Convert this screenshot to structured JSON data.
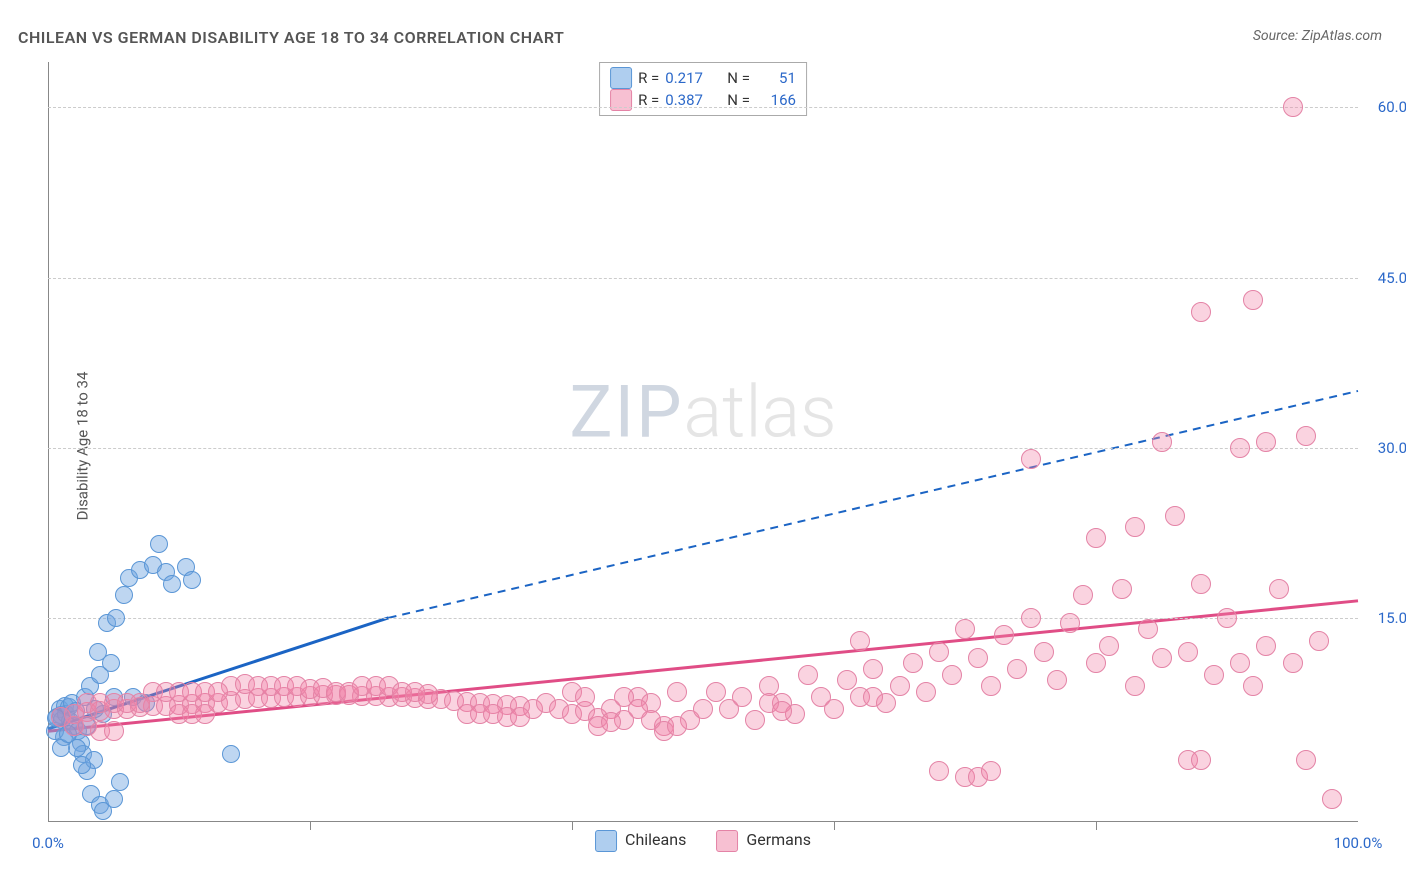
{
  "title": "CHILEAN VS GERMAN DISABILITY AGE 18 TO 34 CORRELATION CHART",
  "source": "Source: ZipAtlas.com",
  "ylabel": "Disability Age 18 to 34",
  "watermark": {
    "left": "ZIP",
    "right": "atlas"
  },
  "colors": {
    "blue_fill": "rgba(110,165,225,0.45)",
    "blue_stroke": "#5a96d6",
    "pink_fill": "rgba(240,130,165,0.35)",
    "pink_stroke": "#e483a6",
    "blue_line": "#1b64c4",
    "pink_line": "#e04d86",
    "tick_label": "#2b68c9",
    "grid": "#cccccc",
    "axis": "#888888"
  },
  "axes": {
    "x": {
      "min": 0,
      "max": 100,
      "label_min": "0.0%",
      "label_max": "100.0%",
      "ticks_at": [
        20,
        40,
        60,
        80
      ]
    },
    "y": {
      "min": -3,
      "max": 64,
      "grid": [
        {
          "v": 15,
          "label": "15.0%"
        },
        {
          "v": 30,
          "label": "30.0%"
        },
        {
          "v": 45,
          "label": "45.0%"
        },
        {
          "v": 60,
          "label": "60.0%"
        }
      ]
    }
  },
  "series": [
    {
      "id": "chileans",
      "name": "Chileans",
      "swatch_fill": "rgba(110,165,225,0.55)",
      "swatch_stroke": "#5a96d6",
      "r_label": "R =",
      "r_value": "0.217",
      "n_label": "N =",
      "n_value": "51",
      "marker_r": 9,
      "trend": {
        "x1": 0,
        "y1": 5.2,
        "x2_solid": 26,
        "y2_solid": 15.0,
        "x2_dash": 100,
        "y2_dash": 35.0
      },
      "points": [
        [
          0.7,
          6.3
        ],
        [
          0.9,
          7.0
        ],
        [
          1.0,
          6.4
        ],
        [
          1.1,
          6.0
        ],
        [
          1.3,
          7.2
        ],
        [
          1.4,
          6.5
        ],
        [
          1.6,
          7.1
        ],
        [
          1.7,
          5.9
        ],
        [
          1.8,
          7.5
        ],
        [
          2.0,
          5.5
        ],
        [
          2.1,
          6.8
        ],
        [
          2.3,
          5.0
        ],
        [
          2.5,
          4.0
        ],
        [
          2.7,
          3.0
        ],
        [
          3.0,
          1.5
        ],
        [
          3.3,
          -0.5
        ],
        [
          4.0,
          -1.5
        ],
        [
          4.2,
          -2.0
        ],
        [
          5.0,
          -1.0
        ],
        [
          5.5,
          0.5
        ],
        [
          3.5,
          2.5
        ],
        [
          2.8,
          8.0
        ],
        [
          3.2,
          9.0
        ],
        [
          3.8,
          12.0
        ],
        [
          4.5,
          14.5
        ],
        [
          5.2,
          15.0
        ],
        [
          5.8,
          17.0
        ],
        [
          6.2,
          18.5
        ],
        [
          7.0,
          19.2
        ],
        [
          8.0,
          19.7
        ],
        [
          8.5,
          21.5
        ],
        [
          9.0,
          19.0
        ],
        [
          9.5,
          18.0
        ],
        [
          10.5,
          19.5
        ],
        [
          11.0,
          18.3
        ],
        [
          5.0,
          8.0
        ],
        [
          6.5,
          8.0
        ],
        [
          7.5,
          7.5
        ],
        [
          2.2,
          3.5
        ],
        [
          2.6,
          2.0
        ],
        [
          3.0,
          5.5
        ],
        [
          1.2,
          4.5
        ],
        [
          0.5,
          5.0
        ],
        [
          0.6,
          6.2
        ],
        [
          1.0,
          3.5
        ],
        [
          1.5,
          4.8
        ],
        [
          14.0,
          3.0
        ],
        [
          4.0,
          10.0
        ],
        [
          4.8,
          11.0
        ],
        [
          4.2,
          6.5
        ],
        [
          3.6,
          7.0
        ]
      ]
    },
    {
      "id": "germans",
      "name": "Germans",
      "swatch_fill": "rgba(240,130,165,0.5)",
      "swatch_stroke": "#e483a6",
      "r_label": "R =",
      "r_value": "0.387",
      "n_label": "N =",
      "n_value": "166",
      "marker_r": 10,
      "trend": {
        "x1": 0,
        "y1": 5.0,
        "x2_solid": 100,
        "y2_solid": 16.5,
        "x2_dash": 100,
        "y2_dash": 16.5
      },
      "points": [
        [
          1,
          6.3
        ],
        [
          2,
          6.5
        ],
        [
          3,
          6.7
        ],
        [
          4,
          6.8
        ],
        [
          5,
          7.0
        ],
        [
          6,
          7.0
        ],
        [
          7,
          7.1
        ],
        [
          8,
          7.2
        ],
        [
          9,
          7.2
        ],
        [
          10,
          7.3
        ],
        [
          11,
          7.4
        ],
        [
          12,
          7.5
        ],
        [
          13,
          7.5
        ],
        [
          14,
          7.7
        ],
        [
          15,
          7.8
        ],
        [
          16,
          7.9
        ],
        [
          17,
          7.9
        ],
        [
          18,
          8.0
        ],
        [
          19,
          8.0
        ],
        [
          20,
          8.1
        ],
        [
          21,
          8.2
        ],
        [
          22,
          8.2
        ],
        [
          23,
          8.2
        ],
        [
          24,
          8.1
        ],
        [
          25,
          8.1
        ],
        [
          26,
          8.0
        ],
        [
          27,
          8.0
        ],
        [
          28,
          7.9
        ],
        [
          29,
          7.8
        ],
        [
          30,
          7.8
        ],
        [
          31,
          7.7
        ],
        [
          32,
          7.6
        ],
        [
          33,
          7.5
        ],
        [
          34,
          7.4
        ],
        [
          35,
          7.3
        ],
        [
          36,
          7.2
        ],
        [
          37,
          7.0
        ],
        [
          38,
          7.5
        ],
        [
          39,
          7.0
        ],
        [
          40,
          6.5
        ],
        [
          41,
          6.8
        ],
        [
          42,
          6.2
        ],
        [
          43,
          7.0
        ],
        [
          44,
          6.0
        ],
        [
          45,
          8.0
        ],
        [
          46,
          7.5
        ],
        [
          47,
          5.5
        ],
        [
          48,
          8.5
        ],
        [
          49,
          6.0
        ],
        [
          50,
          7.0
        ],
        [
          51,
          8.5
        ],
        [
          52,
          7.0
        ],
        [
          53,
          8.0
        ],
        [
          54,
          6.0
        ],
        [
          55,
          9.0
        ],
        [
          56,
          7.5
        ],
        [
          57,
          6.5
        ],
        [
          58,
          10.0
        ],
        [
          59,
          8.0
        ],
        [
          60,
          7.0
        ],
        [
          61,
          9.5
        ],
        [
          62,
          13.0
        ],
        [
          63,
          10.5
        ],
        [
          64,
          7.5
        ],
        [
          65,
          9.0
        ],
        [
          66,
          11.0
        ],
        [
          67,
          8.5
        ],
        [
          68,
          12.0
        ],
        [
          69,
          10.0
        ],
        [
          70,
          14.0
        ],
        [
          71,
          11.5
        ],
        [
          72,
          9.0
        ],
        [
          73,
          13.5
        ],
        [
          74,
          10.5
        ],
        [
          75,
          15.0
        ],
        [
          75,
          29.0
        ],
        [
          76,
          12.0
        ],
        [
          77,
          9.5
        ],
        [
          78,
          14.5
        ],
        [
          79,
          17.0
        ],
        [
          80,
          11.0
        ],
        [
          80,
          22.0
        ],
        [
          81,
          12.5
        ],
        [
          82,
          17.5
        ],
        [
          83,
          9.0
        ],
        [
          83,
          23.0
        ],
        [
          84,
          14.0
        ],
        [
          85,
          11.5
        ],
        [
          85,
          30.5
        ],
        [
          86,
          24.0
        ],
        [
          87,
          12.0
        ],
        [
          88,
          18.0
        ],
        [
          88,
          42.0
        ],
        [
          89,
          10.0
        ],
        [
          90,
          15.0
        ],
        [
          91,
          30.0
        ],
        [
          91,
          11.0
        ],
        [
          92,
          9.0
        ],
        [
          92,
          43.0
        ],
        [
          93,
          12.5
        ],
        [
          93,
          30.5
        ],
        [
          94,
          17.5
        ],
        [
          95,
          11.0
        ],
        [
          95,
          60.0
        ],
        [
          96,
          2.5
        ],
        [
          96,
          31.0
        ],
        [
          97,
          13.0
        ],
        [
          98,
          -1.0
        ],
        [
          70,
          1.0
        ],
        [
          71,
          1.0
        ],
        [
          72,
          1.5
        ],
        [
          68,
          1.5
        ],
        [
          46,
          6.0
        ],
        [
          47,
          5.0
        ],
        [
          48,
          5.5
        ],
        [
          14,
          9.0
        ],
        [
          15,
          9.2
        ],
        [
          16,
          9.0
        ],
        [
          17,
          9.0
        ],
        [
          18,
          9.0
        ],
        [
          19,
          9.0
        ],
        [
          20,
          8.7
        ],
        [
          21,
          8.8
        ],
        [
          22,
          8.5
        ],
        [
          23,
          8.5
        ],
        [
          8,
          8.5
        ],
        [
          9,
          8.5
        ],
        [
          10,
          8.5
        ],
        [
          11,
          8.5
        ],
        [
          12,
          8.5
        ],
        [
          13,
          8.5
        ],
        [
          3,
          7.5
        ],
        [
          4,
          7.5
        ],
        [
          5,
          7.5
        ],
        [
          6,
          7.5
        ],
        [
          7,
          7.5
        ],
        [
          2,
          5.5
        ],
        [
          3,
          5.5
        ],
        [
          4,
          5.0
        ],
        [
          5,
          5.0
        ],
        [
          10,
          6.5
        ],
        [
          11,
          6.5
        ],
        [
          12,
          6.5
        ],
        [
          32,
          6.5
        ],
        [
          33,
          6.5
        ],
        [
          34,
          6.5
        ],
        [
          35,
          6.3
        ],
        [
          36,
          6.3
        ],
        [
          44,
          8.0
        ],
        [
          45,
          7.0
        ],
        [
          55,
          7.5
        ],
        [
          56,
          6.8
        ],
        [
          40,
          8.5
        ],
        [
          41,
          8.0
        ],
        [
          62,
          8.0
        ],
        [
          63,
          8.0
        ],
        [
          87,
          2.5
        ],
        [
          88,
          2.5
        ],
        [
          42,
          5.5
        ],
        [
          43,
          5.8
        ],
        [
          24,
          9.0
        ],
        [
          25,
          9.0
        ],
        [
          26,
          9.0
        ],
        [
          27,
          8.5
        ],
        [
          28,
          8.5
        ],
        [
          29,
          8.3
        ]
      ]
    }
  ]
}
